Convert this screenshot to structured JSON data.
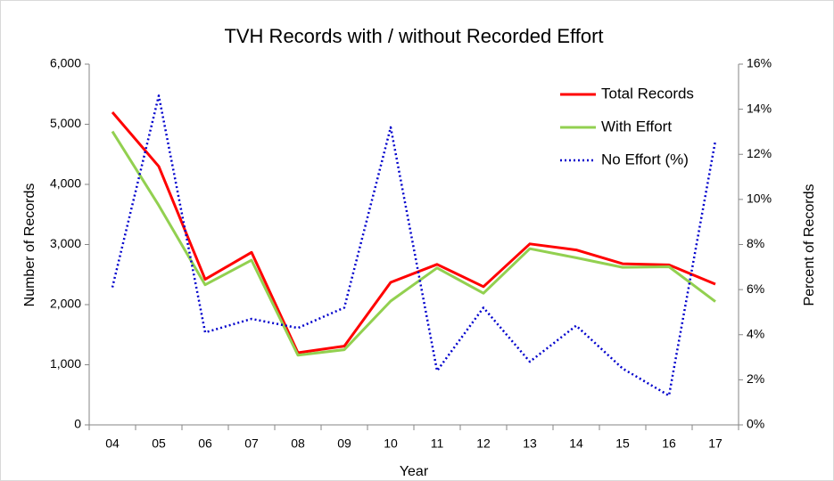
{
  "chart_data": {
    "type": "line",
    "title": "TVH Records with / without Recorded Effort",
    "x_label": "Year",
    "y_label": "Number of Records",
    "y2_label": "Percent of Records",
    "categories": [
      "04",
      "05",
      "06",
      "07",
      "08",
      "09",
      "10",
      "11",
      "12",
      "13",
      "14",
      "15",
      "16",
      "17"
    ],
    "series": [
      {
        "name": "Total Records",
        "color": "#ff0000",
        "dash": "solid",
        "values": [
          5200,
          4300,
          2420,
          2870,
          1200,
          1310,
          2370,
          2670,
          2300,
          3010,
          2910,
          2680,
          2660,
          2340
        ]
      },
      {
        "name": "With Effort",
        "color": "#92d050",
        "dash": "solid",
        "values": [
          4880,
          3650,
          2330,
          2740,
          1160,
          1250,
          2060,
          2610,
          2190,
          2930,
          2780,
          2620,
          2630,
          2050
        ]
      },
      {
        "name": "No Effort (%)",
        "color": "#0000cc",
        "dash": "dotted",
        "axis": "y2",
        "values": [
          6.1,
          14.6,
          4.1,
          4.7,
          4.3,
          5.2,
          13.2,
          2.4,
          5.2,
          2.8,
          4.4,
          2.5,
          1.3,
          12.6
        ]
      }
    ],
    "ylim": [
      0,
      6000
    ],
    "yticks": [
      0,
      {
        "value": 1000,
        "label": "1,000"
      },
      {
        "value": 2000,
        "label": "2,000"
      },
      {
        "value": 3000,
        "label": "3,000"
      },
      {
        "value": 4000,
        "label": "4,000"
      },
      {
        "value": 5000,
        "label": "5,000"
      },
      {
        "value": 6000,
        "label": "6,000"
      }
    ],
    "y2lim": [
      0,
      16
    ],
    "y2ticks": [
      {
        "value": 0,
        "label": "0%"
      },
      {
        "value": 2,
        "label": "2%"
      },
      {
        "value": 4,
        "label": "4%"
      },
      {
        "value": 6,
        "label": "6%"
      },
      {
        "value": 8,
        "label": "8%"
      },
      {
        "value": 10,
        "label": "10%"
      },
      {
        "value": 12,
        "label": "12%"
      },
      {
        "value": 14,
        "label": "14%"
      },
      {
        "value": 16,
        "label": "16%"
      }
    ],
    "legend": "upper right"
  }
}
